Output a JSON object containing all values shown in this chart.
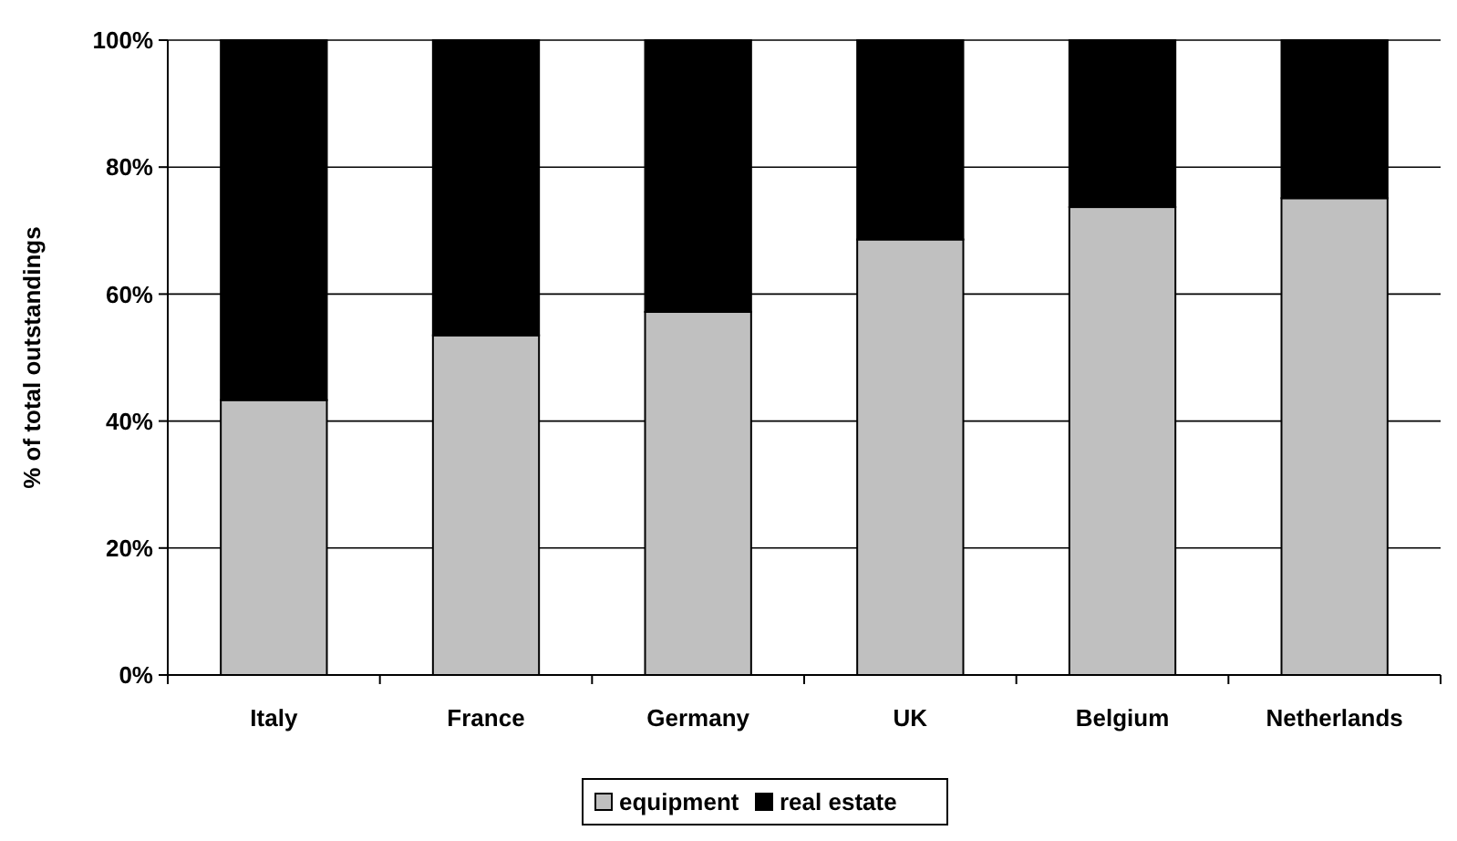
{
  "chart_data": {
    "type": "bar",
    "stacked": true,
    "ylabel": "% of total outstandings",
    "categories": [
      "Italy",
      "France",
      "Germany",
      "UK",
      "Belgium",
      "Netherlands"
    ],
    "series": [
      {
        "name": "equipment",
        "color": "#c0c0c0",
        "values": [
          43.3,
          53.5,
          57.2,
          68.6,
          73.7,
          75.1
        ]
      },
      {
        "name": "real estate",
        "color": "#000000",
        "values": [
          56.7,
          46.5,
          42.8,
          31.4,
          26.3,
          24.9
        ]
      }
    ],
    "ylim": [
      0,
      100
    ],
    "yticks": [
      {
        "value": 0,
        "label": "0%"
      },
      {
        "value": 20,
        "label": "20%"
      },
      {
        "value": 40,
        "label": "40%"
      },
      {
        "value": 60,
        "label": "60%"
      },
      {
        "value": 80,
        "label": "80%"
      },
      {
        "value": 100,
        "label": "100%"
      }
    ],
    "grid": "y",
    "legend": "bottom"
  }
}
